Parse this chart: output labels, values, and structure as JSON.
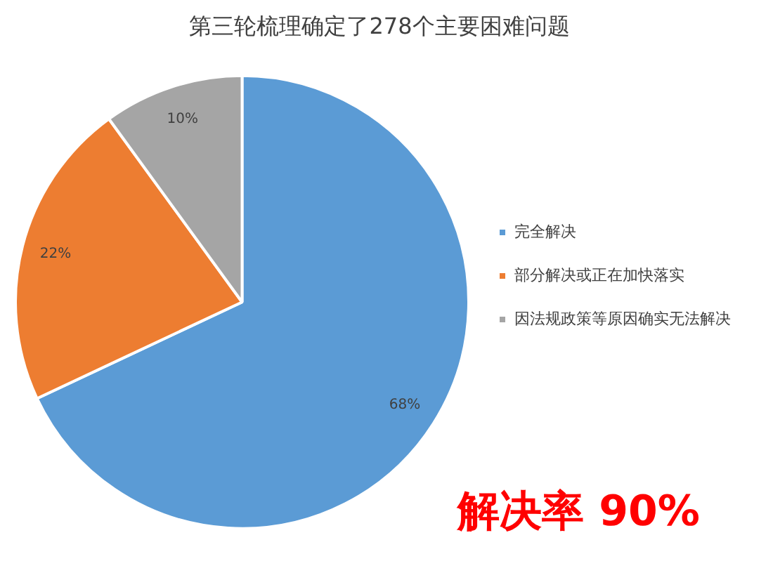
{
  "chart_data": {
    "type": "pie",
    "title": "第三轮梳理确定了278个主要困难问题",
    "categories": [
      "完全解决",
      "部分解决或正在加快落实",
      "因法规政策等原因确实无法解决"
    ],
    "values": [
      68,
      22,
      10
    ],
    "colors": [
      "#5b9bd5",
      "#ed7d31",
      "#a5a5a5"
    ],
    "value_labels": [
      "68%",
      "22%",
      "10%"
    ],
    "legend": "right",
    "annotations": [
      "解决率 90%"
    ]
  }
}
